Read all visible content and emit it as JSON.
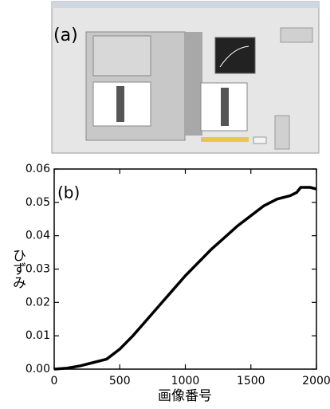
{
  "panel_a": {
    "label": "(a)"
  },
  "chart_data": {
    "type": "line",
    "annotation": "(b)",
    "x_label": "画像番号",
    "y_label": "ひずみ",
    "x": [
      0,
      100,
      200,
      300,
      400,
      450,
      500,
      600,
      700,
      800,
      900,
      1000,
      1100,
      1200,
      1300,
      1400,
      1500,
      1600,
      1700,
      1800,
      1850,
      1880,
      1950,
      2000
    ],
    "series": [
      {
        "color": "#000000",
        "values": [
          0,
          0.0003,
          0.001,
          0.002,
          0.003,
          0.0045,
          0.006,
          0.01,
          0.0145,
          0.019,
          0.0235,
          0.028,
          0.032,
          0.036,
          0.0395,
          0.043,
          0.046,
          0.049,
          0.051,
          0.052,
          0.053,
          0.0545,
          0.0545,
          0.054
        ]
      }
    ],
    "xlim": [
      0,
      2000
    ],
    "xticks": [
      0,
      500,
      1000,
      1500,
      2000
    ],
    "ylim": [
      0,
      0.06
    ],
    "yticks": [
      {
        "value": 0,
        "label": "0.00"
      },
      0.01,
      0.02,
      0.03,
      0.04,
      0.05,
      0.06
    ]
  }
}
